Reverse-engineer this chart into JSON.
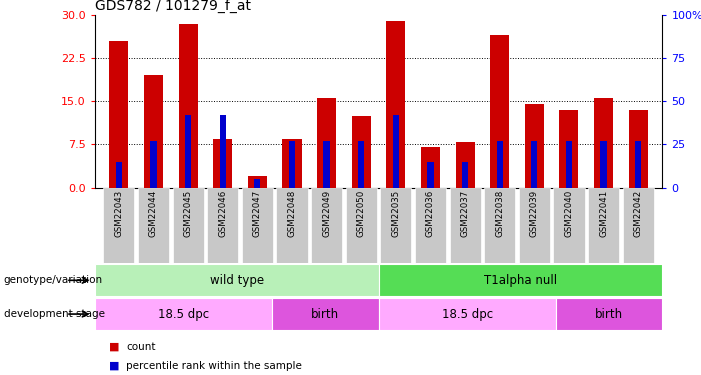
{
  "title": "GDS782 / 101279_f_at",
  "samples": [
    "GSM22043",
    "GSM22044",
    "GSM22045",
    "GSM22046",
    "GSM22047",
    "GSM22048",
    "GSM22049",
    "GSM22050",
    "GSM22035",
    "GSM22036",
    "GSM22037",
    "GSM22038",
    "GSM22039",
    "GSM22040",
    "GSM22041",
    "GSM22042"
  ],
  "count_values": [
    25.5,
    19.5,
    28.5,
    8.5,
    2.0,
    8.5,
    15.5,
    12.5,
    29.0,
    7.0,
    8.0,
    26.5,
    14.5,
    13.5,
    15.5,
    13.5
  ],
  "percentile_values": [
    15.0,
    27.0,
    42.0,
    42.0,
    5.0,
    27.0,
    27.0,
    27.0,
    42.0,
    15.0,
    15.0,
    27.0,
    27.0,
    27.0,
    27.0,
    27.0
  ],
  "ylim_left": [
    0,
    30
  ],
  "yticks_left": [
    0,
    7.5,
    15,
    22.5,
    30
  ],
  "ylim_right": [
    0,
    100
  ],
  "yticks_right": [
    0,
    25,
    50,
    75,
    100
  ],
  "bar_color": "#cc0000",
  "percentile_color": "#0000cc",
  "background_color": "#ffffff",
  "tick_bg_color": "#c8c8c8",
  "genotype_groups": [
    {
      "label": "wild type",
      "start": 0,
      "end": 8,
      "color": "#b8f0b8"
    },
    {
      "label": "T1alpha null",
      "start": 8,
      "end": 16,
      "color": "#55dd55"
    }
  ],
  "stage_groups": [
    {
      "label": "18.5 dpc",
      "start": 0,
      "end": 5,
      "color": "#ffaaff"
    },
    {
      "label": "birth",
      "start": 5,
      "end": 8,
      "color": "#dd55dd"
    },
    {
      "label": "18.5 dpc",
      "start": 8,
      "end": 13,
      "color": "#ffaaff"
    },
    {
      "label": "birth",
      "start": 13,
      "end": 16,
      "color": "#dd55dd"
    }
  ],
  "legend_count_color": "#cc0000",
  "legend_pct_color": "#0000cc",
  "legend_count_label": "count",
  "legend_pct_label": "percentile rank within the sample",
  "xlabel_genotype": "genotype/variation",
  "xlabel_stage": "development stage",
  "bar_width": 0.55,
  "pct_bar_width": 0.18
}
